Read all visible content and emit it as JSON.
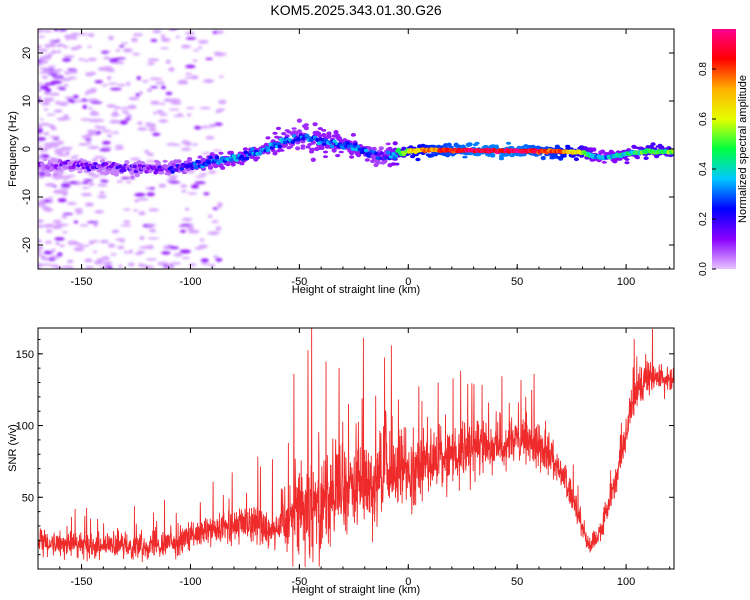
{
  "title": "KOM5.2025.343.01.30.G26",
  "colors": {
    "snr_line": "#ee2a2a",
    "axis": "#000000",
    "colorbar_stops": [
      "#e6c3ff",
      "#8a00ff",
      "#0000ff",
      "#00c8ff",
      "#00ff40",
      "#e6ff00",
      "#ffb000",
      "#ff0000",
      "#ff0090"
    ]
  },
  "chart_data": [
    {
      "type": "heatmap",
      "name": "spectrogram",
      "xlabel": "Height of straight line (km)",
      "ylabel": "Frequency (Hz)",
      "xlim": [
        -170,
        122
      ],
      "ylim": [
        -25,
        25
      ],
      "xticks": [
        -150,
        -100,
        -50,
        0,
        50,
        100
      ],
      "yticks": [
        -20,
        -10,
        0,
        10,
        20
      ],
      "colorbar": {
        "label": "Normalized spectral amplitude",
        "range": [
          0,
          0.96
        ],
        "ticks": [
          0.0,
          0.2,
          0.4,
          0.6,
          0.8
        ]
      },
      "ridge": {
        "x": [
          -170,
          -150,
          -130,
          -110,
          -95,
          -80,
          -70,
          -60,
          -50,
          -40,
          -30,
          -20,
          -12,
          -8,
          0,
          10,
          30,
          50,
          70,
          80,
          85,
          90,
          100,
          110,
          122
        ],
        "freq": [
          -3.5,
          -3.5,
          -4,
          -4,
          -3,
          -2,
          -1,
          1,
          2.5,
          2,
          1,
          -0.5,
          -1.5,
          -1.5,
          -0.5,
          -0.2,
          -0.3,
          -0.4,
          -0.5,
          -0.8,
          -1.5,
          -1.8,
          -1,
          -0.5,
          -0.6
        ],
        "amplitude": [
          0.05,
          0.1,
          0.12,
          0.15,
          0.25,
          0.3,
          0.3,
          0.3,
          0.25,
          0.3,
          0.3,
          0.3,
          0.2,
          0.3,
          0.6,
          0.75,
          0.9,
          0.9,
          0.75,
          0.55,
          0.35,
          0.3,
          0.4,
          0.5,
          0.5
        ]
      }
    },
    {
      "type": "line",
      "name": "snr",
      "xlabel": "Height of straight line (km)",
      "ylabel": "SNR (v/v)",
      "xlim": [
        -170,
        122
      ],
      "ylim": [
        0,
        168
      ],
      "xticks": [
        -150,
        -100,
        -50,
        0,
        50,
        100
      ],
      "yticks": [
        50,
        100,
        150
      ],
      "trend": {
        "x": [
          -170,
          -150,
          -130,
          -110,
          -100,
          -90,
          -80,
          -70,
          -65,
          -60,
          -50,
          -40,
          -30,
          -20,
          -10,
          0,
          10,
          20,
          30,
          40,
          50,
          60,
          65,
          70,
          75,
          80,
          83,
          88,
          95,
          100,
          105,
          110,
          122
        ],
        "mean": [
          18,
          17,
          16,
          18,
          22,
          26,
          30,
          33,
          28,
          30,
          45,
          50,
          55,
          60,
          65,
          70,
          75,
          80,
          83,
          87,
          88,
          86,
          80,
          70,
          50,
          30,
          15,
          25,
          60,
          95,
          125,
          135,
          130
        ],
        "spread": [
          10,
          11,
          11,
          12,
          13,
          14,
          16,
          18,
          18,
          22,
          45,
          50,
          45,
          42,
          40,
          32,
          28,
          26,
          24,
          22,
          20,
          20,
          18,
          14,
          12,
          10,
          8,
          10,
          12,
          16,
          18,
          15,
          14
        ]
      }
    }
  ]
}
